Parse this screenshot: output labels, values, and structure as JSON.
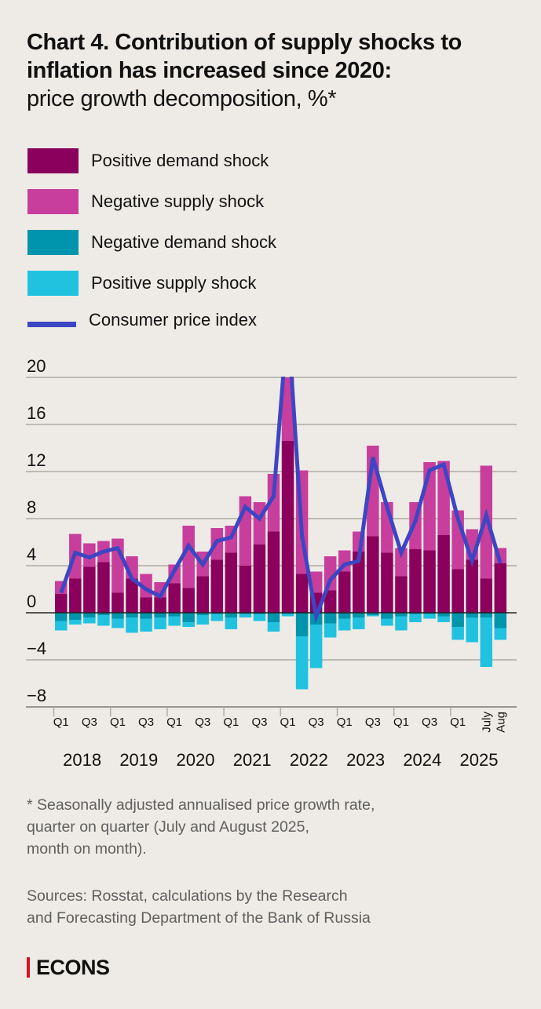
{
  "header": {
    "title_bold": "Chart 4. Contribution of supply shocks to inflation has increased since 2020:",
    "title_sub": "price growth decomposition, %*"
  },
  "legend": [
    {
      "label": "Positive demand shock",
      "color": "#8a005c",
      "kind": "box"
    },
    {
      "label": "Negative supply shock",
      "color": "#c83e9c",
      "kind": "box"
    },
    {
      "label": "Negative demand shock",
      "color": "#0094ad",
      "kind": "box"
    },
    {
      "label": "Positive supply shock",
      "color": "#21c2e0",
      "kind": "box"
    },
    {
      "label": "Consumer price index",
      "color": "#3d46c2",
      "kind": "line"
    }
  ],
  "footnote": "* Seasonally adjusted annualised price growth rate, quarter on quarter (July and August 2025, month on month).",
  "footnote_lines": [
    "* Seasonally adjusted annualised price growth rate,",
    "quarter on quarter (July and August 2025,",
    "month on month)."
  ],
  "sources_lines": [
    "Sources: Rosstat, calculations by the Research",
    "and Forecasting Department of the Bank of Russia"
  ],
  "brand": "ECONS",
  "chart_data": {
    "type": "bar",
    "stacked": true,
    "title": "Contribution of supply shocks to inflation has increased since 2020: price growth decomposition, %",
    "xlabel": "",
    "ylabel": "%",
    "ylim": [
      -8,
      20
    ],
    "yticks": [
      20,
      16,
      12,
      8,
      4,
      0,
      -4,
      -8
    ],
    "ytick_labels": [
      "20",
      "16",
      "12",
      "8",
      "4",
      "0",
      "−4",
      "−8"
    ],
    "grid": true,
    "legend_position": "top",
    "categories": [
      "2018 Q1",
      "2018 Q2",
      "2018 Q3",
      "2018 Q4",
      "2019 Q1",
      "2019 Q2",
      "2019 Q3",
      "2019 Q4",
      "2020 Q1",
      "2020 Q2",
      "2020 Q3",
      "2020 Q4",
      "2021 Q1",
      "2021 Q2",
      "2021 Q3",
      "2021 Q4",
      "2022 Q1",
      "2022 Q2",
      "2022 Q3",
      "2022 Q4",
      "2023 Q1",
      "2023 Q2",
      "2023 Q3",
      "2023 Q4",
      "2024 Q1",
      "2024 Q2",
      "2024 Q3",
      "2024 Q4",
      "2025 Q1",
      "2025 Q2",
      "2025 July",
      "2025 Aug"
    ],
    "x_tick_labels": [
      {
        "index": 0,
        "label": "Q1"
      },
      {
        "index": 2,
        "label": "Q3"
      },
      {
        "index": 4,
        "label": "Q1"
      },
      {
        "index": 6,
        "label": "Q3"
      },
      {
        "index": 8,
        "label": "Q1"
      },
      {
        "index": 10,
        "label": "Q3"
      },
      {
        "index": 12,
        "label": "Q1"
      },
      {
        "index": 14,
        "label": "Q3"
      },
      {
        "index": 16,
        "label": "Q1"
      },
      {
        "index": 18,
        "label": "Q3"
      },
      {
        "index": 20,
        "label": "Q1"
      },
      {
        "index": 22,
        "label": "Q3"
      },
      {
        "index": 24,
        "label": "Q1"
      },
      {
        "index": 26,
        "label": "Q3"
      },
      {
        "index": 28,
        "label": "Q1"
      },
      {
        "index": 30,
        "label": "July",
        "rotated": true
      },
      {
        "index": 31,
        "label": "Aug",
        "rotated": true
      }
    ],
    "year_labels": [
      {
        "label": "2018",
        "start": 0,
        "count": 4
      },
      {
        "label": "2019",
        "start": 4,
        "count": 4
      },
      {
        "label": "2020",
        "start": 8,
        "count": 4
      },
      {
        "label": "2021",
        "start": 12,
        "count": 4
      },
      {
        "label": "2022",
        "start": 16,
        "count": 4
      },
      {
        "label": "2023",
        "start": 20,
        "count": 4
      },
      {
        "label": "2024",
        "start": 24,
        "count": 4
      },
      {
        "label": "2025",
        "start": 28,
        "count": 4
      }
    ],
    "series": [
      {
        "name": "Positive demand shock",
        "color": "#8a005c",
        "type": "bar",
        "values": [
          1.6,
          2.9,
          3.9,
          4.3,
          1.7,
          2.9,
          1.3,
          1.3,
          2.5,
          2.1,
          3.1,
          4.5,
          5.1,
          4.0,
          5.8,
          6.9,
          14.6,
          3.3,
          1.7,
          1.9,
          3.5,
          5.2,
          6.5,
          5.1,
          3.1,
          5.4,
          5.3,
          6.6,
          3.7,
          4.5,
          2.9,
          4.2
        ]
      },
      {
        "name": "Negative supply shock",
        "color": "#c83e9c",
        "type": "bar",
        "values": [
          1.1,
          3.8,
          2.0,
          1.8,
          4.6,
          1.9,
          2.0,
          1.3,
          1.6,
          5.3,
          2.1,
          2.7,
          2.3,
          5.9,
          3.6,
          4.9,
          6.0,
          8.8,
          1.8,
          2.9,
          1.8,
          1.7,
          7.7,
          4.3,
          2.4,
          4.0,
          7.5,
          6.3,
          5.0,
          2.6,
          9.6,
          1.3
        ]
      },
      {
        "name": "Negative demand shock",
        "color": "#0094ad",
        "type": "bar",
        "values": [
          -0.7,
          -0.6,
          -0.4,
          -0.2,
          -0.5,
          -0.4,
          -0.5,
          -0.4,
          -0.3,
          -0.8,
          -0.2,
          -0.1,
          -0.4,
          -0.1,
          -0.1,
          -0.8,
          -0.1,
          -2.0,
          -1.0,
          -0.9,
          -0.5,
          -0.4,
          -0.2,
          -0.5,
          -0.3,
          -0.1,
          -0.1,
          -0.3,
          -1.2,
          -0.4,
          -0.4,
          -1.3
        ]
      },
      {
        "name": "Positive supply shock",
        "color": "#21c2e0",
        "type": "bar",
        "values": [
          -0.8,
          -0.4,
          -0.5,
          -0.9,
          -0.8,
          -1.3,
          -1.1,
          -1.0,
          -0.8,
          -0.4,
          -0.8,
          -0.6,
          -1.0,
          -0.3,
          -0.6,
          -0.8,
          -0.2,
          -4.5,
          -3.7,
          -1.2,
          -1.0,
          -1.0,
          -0.1,
          -0.6,
          -1.2,
          -0.7,
          -0.4,
          -0.5,
          -1.1,
          -2.1,
          -4.2,
          -1.0
        ]
      },
      {
        "name": "Consumer price index",
        "color": "#3d46c2",
        "type": "line",
        "values": [
          1.7,
          5.1,
          4.7,
          5.2,
          5.5,
          2.9,
          2.0,
          1.4,
          3.6,
          5.7,
          4.1,
          6.1,
          6.4,
          9.0,
          8.0,
          9.9,
          25.0,
          6.5,
          -0.3,
          2.8,
          4.1,
          4.4,
          13.2,
          9.0,
          5.1,
          7.8,
          12.1,
          12.6,
          8.0,
          4.4,
          8.3,
          4.2
        ]
      }
    ]
  }
}
